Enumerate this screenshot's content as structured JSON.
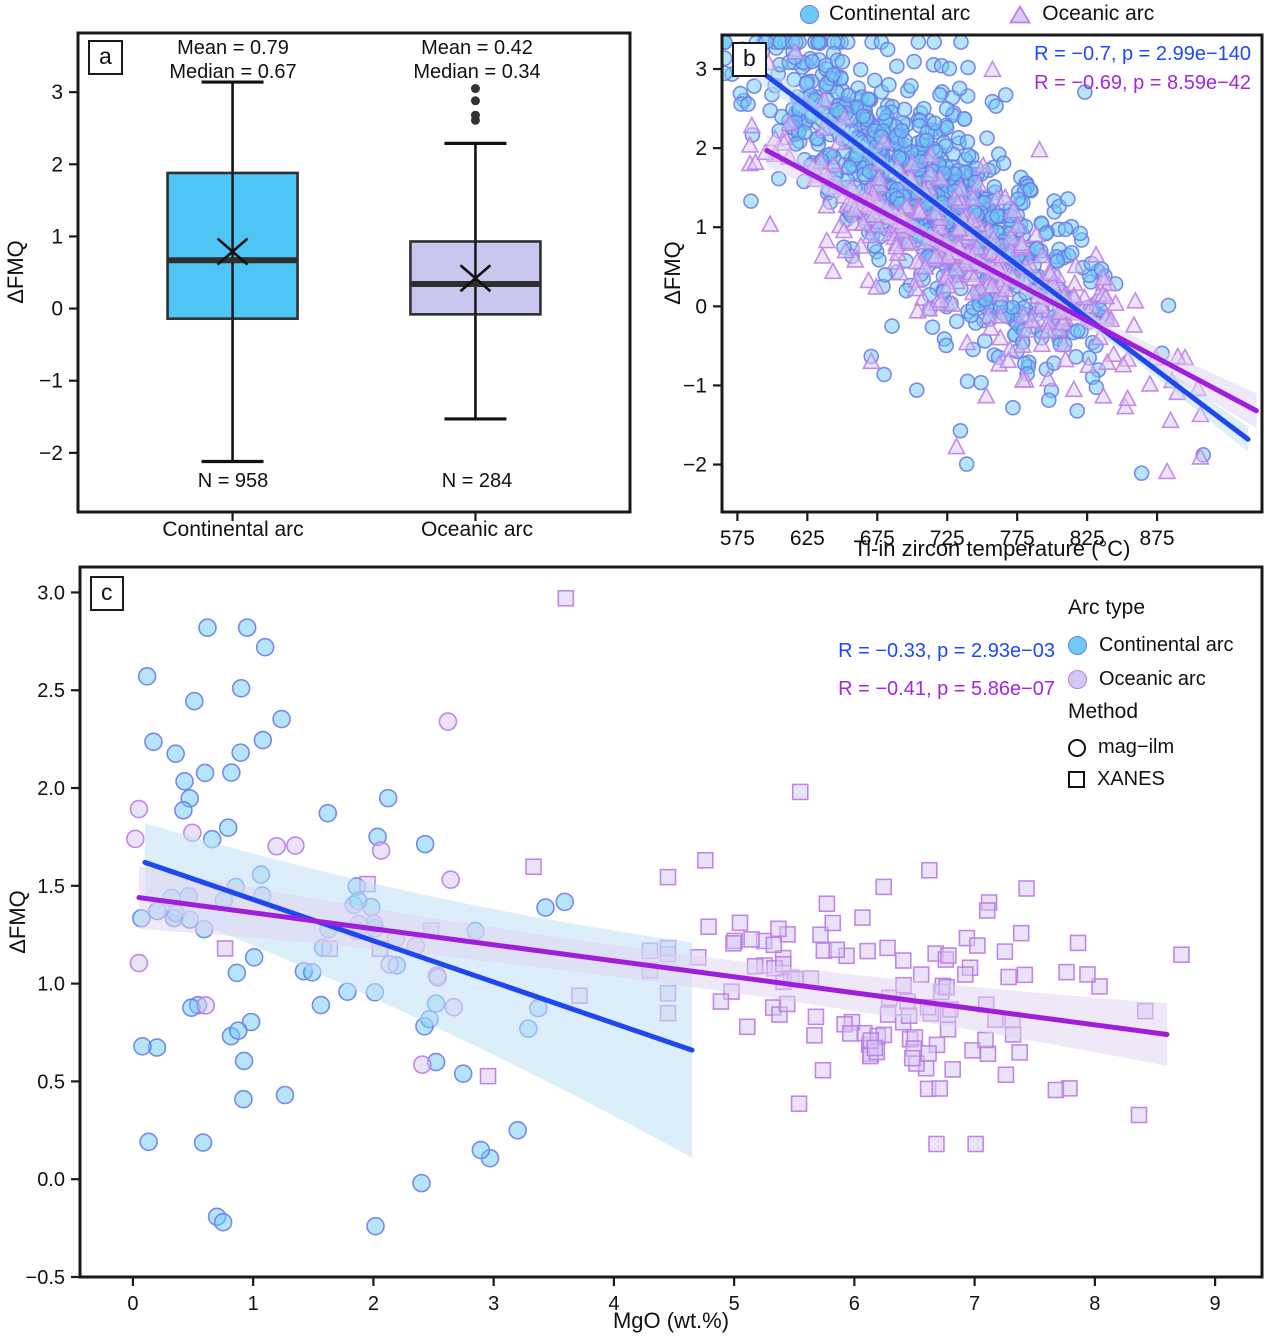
{
  "colors": {
    "blue_line": "#1E47F0",
    "purple_line": "#9E1EDB",
    "blue_text": "#1A49FF",
    "purple_text": "#A524E8",
    "continental_fill": "#6EC9F4",
    "continental_stroke": "#6D7EE8",
    "oceanic_fill": "#D5C8F2",
    "oceanic_stroke": "#BB7BE4",
    "box_continental_fill": "#4EC6F5",
    "box_oceanic_fill": "#C9C7F0",
    "box_stroke": "#2F2F2F",
    "axis": "#1a1a1a",
    "blue_band": "#BFE0F6",
    "purple_band": "#DFD2F2"
  },
  "chart_data": [
    {
      "id": "a",
      "type": "boxplot",
      "tag": "a",
      "ylabel": "ΔFMQ",
      "ylim": [
        -2.82,
        3.82
      ],
      "yticks": [
        -2,
        -1,
        0,
        1,
        2,
        3
      ],
      "categories": [
        "Continental arc",
        "Oceanic arc"
      ],
      "groups": [
        {
          "label": "Continental arc",
          "mean_label": "Mean = 0.79",
          "median_label": "Median = 0.67",
          "n_label": "N = 958",
          "n": 958,
          "whisker_low": -2.12,
          "q1": -0.14,
          "median": 0.67,
          "q3": 1.88,
          "whisker_high": 3.14,
          "mean": 0.79,
          "outliers": [],
          "fill": "#4EC6F5"
        },
        {
          "label": "Oceanic arc",
          "mean_label": "Mean = 0.42",
          "median_label": "Median = 0.34",
          "n_label": "N = 284",
          "n": 284,
          "whisker_low": -1.53,
          "q1": -0.08,
          "median": 0.34,
          "q3": 0.93,
          "whisker_high": 2.29,
          "mean": 0.42,
          "outliers": [
            3.05,
            2.88,
            2.68,
            2.61
          ],
          "fill": "#C9C7F0"
        }
      ]
    },
    {
      "id": "b",
      "type": "scatter",
      "tag": "b",
      "xlabel": "Ti-in zircon temperature (°C)",
      "ylabel": "ΔFMQ",
      "xlim": [
        564,
        950
      ],
      "ylim": [
        -2.6,
        3.43
      ],
      "xticks": [
        575,
        625,
        675,
        725,
        775,
        825,
        875
      ],
      "yticks": [
        -2,
        -1,
        0,
        1,
        2,
        3
      ],
      "legend": [
        {
          "label": "Continental arc",
          "marker": "circle"
        },
        {
          "label": "Oceanic arc",
          "marker": "triangle"
        }
      ],
      "stats": [
        {
          "text": "R = −0.7, p = 2.99e−140",
          "color": "#1A49FF"
        },
        {
          "text": "R = −0.69, p = 8.59e−42",
          "color": "#A524E8"
        }
      ],
      "series": [
        {
          "name": "Continental arc",
          "marker": "circle",
          "n": 958,
          "fill": "#6EC9F4",
          "stroke": "#6D7EE8",
          "xdist": {
            "mean": 712,
            "sd": 58,
            "min": 566,
            "max": 908
          },
          "trend": {
            "x1": 588,
            "y1": 3.02,
            "x2": 940,
            "y2": -1.68
          },
          "resid_sd": 0.6,
          "wide_frac": 0.09,
          "wide_mult": 2.1,
          "y_min": -2.28,
          "y_max": 3.34,
          "seed": 42,
          "line_color": "#1E47F0",
          "band": {
            "h_start": 0.16,
            "h_mid": 0.06,
            "h_end": 0.16,
            "color": "#BFE0F6",
            "opacity": 0.5
          }
        },
        {
          "name": "Oceanic arc",
          "marker": "triangle",
          "n": 284,
          "fill": "#D9CCF4",
          "stroke": "#C07FE8",
          "xdist": {
            "mean": 748,
            "sd": 74,
            "min": 584,
            "max": 906
          },
          "trend": {
            "x1": 596,
            "y1": 1.97,
            "x2": 946,
            "y2": -1.32
          },
          "resid_sd": 0.52,
          "wide_frac": 0.06,
          "wide_mult": 1.9,
          "y_min": -2.1,
          "y_max": 3.3,
          "seed": 7,
          "line_color": "#9E1EDB",
          "band": {
            "h_start": 0.2,
            "h_mid": 0.08,
            "h_end": 0.22,
            "color": "#DFD2F2",
            "opacity": 0.5
          }
        }
      ]
    },
    {
      "id": "c",
      "type": "scatter",
      "tag": "c",
      "xlabel": "MgO (wt.%)",
      "ylabel": "ΔFMQ",
      "xlim": [
        -0.44,
        9.39
      ],
      "ylim": [
        -0.5,
        3.13
      ],
      "xticks": [
        0,
        1,
        2,
        3,
        4,
        5,
        6,
        7,
        8,
        9
      ],
      "yticks": [
        -0.5,
        0.0,
        0.5,
        1.0,
        1.5,
        2.0,
        2.5,
        3.0
      ],
      "ytick_decimals": 1,
      "stats": [
        {
          "text": "R = −0.33, p = 2.93e−03",
          "color": "#1A49FF"
        },
        {
          "text": "R = −0.41, p = 5.86e−07",
          "color": "#A524E8"
        }
      ],
      "legend_arc_header": "Arc type",
      "legend_method_header": "Method",
      "legend_arc": [
        {
          "label": "Continental arc",
          "fill": "#6EC9F4",
          "stroke": "#6D7EE8"
        },
        {
          "label": "Oceanic arc",
          "fill": "#D5C8F2",
          "stroke": "#BB7BE4"
        }
      ],
      "legend_method": [
        {
          "label": "mag−ilm",
          "marker": "circle"
        },
        {
          "label": "XANES",
          "marker": "square"
        }
      ],
      "series": [
        {
          "name": "Continental arc",
          "marker": "circle",
          "n": 72,
          "fill": "#6EC9F4",
          "stroke": "#6D7EE8",
          "xdist": {
            "mean": 1.35,
            "sd": 1.15,
            "min": 0.07,
            "max": 5.3,
            "abs": true
          },
          "trend": {
            "x1": 0.1,
            "y1": 1.62,
            "x2": 4.65,
            "y2": 0.66
          },
          "resid_sd": 0.6,
          "wide_frac": 0.12,
          "wide_mult": 1.8,
          "y_min": -0.24,
          "y_max": 2.86,
          "seed": 101,
          "line_color": "#1E47F0",
          "band": {
            "h_start": 0.2,
            "h_mid": 0.32,
            "h_end": 0.55,
            "color": "#BFE0F6",
            "opacity": 0.55
          },
          "extra_points": [
            {
              "x": 0.62,
              "y": 2.82
            },
            {
              "x": 0.95,
              "y": 2.82
            },
            {
              "x": 1.1,
              "y": 2.72
            },
            {
              "x": 0.9,
              "y": 2.51
            },
            {
              "x": 0.75,
              "y": -0.22
            },
            {
              "x": 2.4,
              "y": -0.02
            },
            {
              "x": 3.2,
              "y": 0.25
            }
          ]
        },
        {
          "name": "Oceanic arc",
          "marker": "square",
          "n": 146,
          "fill": "#D5C8F2",
          "stroke": "#BB7BE4",
          "xdist": {
            "mean": 2.1,
            "sd": 1.2,
            "min": 0.05,
            "max": 4.3
          },
          "x2": {
            "frac": 0.82,
            "mean": 6.35,
            "sd": 1.05,
            "min": 4.45,
            "max": 8.72
          },
          "circle_below_x": 2.8,
          "circle_prob": 0.75,
          "trend": {
            "x1": 0.05,
            "y1": 1.44,
            "x2": 8.6,
            "y2": 0.74
          },
          "resid_sd": 0.29,
          "wide_frac": 0.05,
          "wide_mult": 1.8,
          "y_min": 0.18,
          "y_max": 2.42,
          "seed": 202,
          "line_color": "#9E1EDB",
          "band": {
            "h_start": 0.16,
            "h_mid": 0.08,
            "h_end": 0.16,
            "color": "#DFD2F2",
            "opacity": 0.5
          },
          "extra_points": [
            {
              "x": 3.6,
              "y": 2.97,
              "marker": "square"
            },
            {
              "x": 2.62,
              "y": 2.34,
              "marker": "circle"
            },
            {
              "x": 0.02,
              "y": 1.74,
              "marker": "circle"
            },
            {
              "x": 5.55,
              "y": 1.98,
              "marker": "square"
            }
          ]
        }
      ]
    }
  ]
}
